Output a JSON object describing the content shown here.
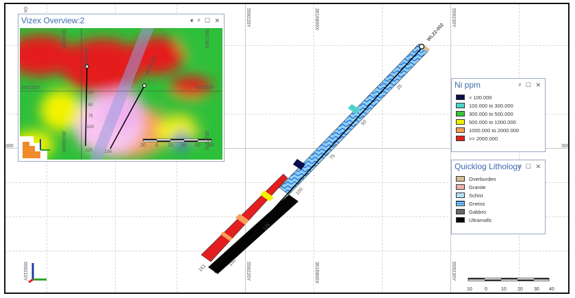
{
  "grid": {
    "top_left_label": "0X",
    "col_labels": [
      "559220Y",
      "3616800X",
      "559230Y"
    ],
    "bottom_labels": [
      "559210Y",
      "559220Y",
      "3616800X",
      "559230Y"
    ],
    "left_mid_label": "300",
    "right_mid_label": "300"
  },
  "overview": {
    "title": "Vizex Overview:2",
    "controls": [
      "▾",
      "ᵖ",
      "☐",
      "✕"
    ],
    "coord_labels": [
      "561500X",
      "561750X",
      "559250Y",
      "559250Y",
      "3616000X",
      "561750X"
    ],
    "hole_labels": [
      "WL23-003",
      "WL22-002"
    ],
    "depth_labels": [
      "0",
      "25",
      "50",
      "75",
      "100",
      "125",
      "150"
    ],
    "scale_ticks": [
      "20",
      "0",
      "20",
      "40",
      "60",
      "80"
    ]
  },
  "drillhole": {
    "name": "WL22-002",
    "depth_labels": [
      "25",
      "50",
      "75",
      "100",
      "125",
      "150",
      "161"
    ]
  },
  "ni_legend": {
    "title": "Ni ppm",
    "controls": [
      "ᵖ",
      "☐",
      "✕"
    ],
    "items": [
      {
        "label": "< 100.000",
        "color": "#0b0f4a"
      },
      {
        "label": "100.000 to 300.000",
        "color": "#4fd3c8"
      },
      {
        "label": "300.000 to 500.000",
        "color": "#3cc43c"
      },
      {
        "label": "500.000 to 1000.000",
        "color": "#f2f200"
      },
      {
        "label": "1000.000 to 2000.000",
        "color": "#f5a05a"
      },
      {
        "label": ">= 2000.000",
        "color": "#e41e1e"
      }
    ]
  },
  "litho_legend": {
    "title": "Quicklog Lithology",
    "controls": [
      "ᵖ",
      "☐",
      "✕"
    ],
    "items": [
      {
        "label": "Overburden",
        "color": "#d8bf98"
      },
      {
        "label": "Granite",
        "color": "#f6c6c6"
      },
      {
        "label": "Schist",
        "color": "#8ccff5"
      },
      {
        "label": "Gneiss",
        "color": "#1e64d8"
      },
      {
        "label": "Gabbro",
        "color": "#666666"
      },
      {
        "label": "Ultramafic",
        "color": "#050505"
      }
    ]
  },
  "main_scale": {
    "ticks": [
      "10",
      "0",
      "10",
      "20",
      "30",
      "40"
    ]
  }
}
